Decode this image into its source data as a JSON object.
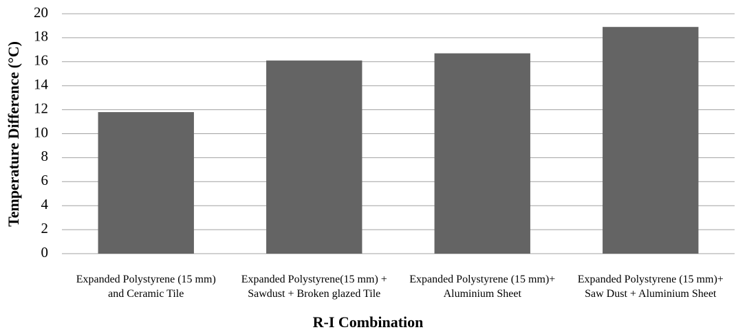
{
  "chart_data": {
    "type": "bar",
    "y_label": "Temperature Difference (°C)",
    "x_label": "R-I Combination",
    "categories": [
      "Expanded Polystyrene (15 mm) and Ceramic Tile",
      "Expanded Polystyrene(15 mm) + Sawdust + Broken glazed Tile",
      "Expanded Polystyrene (15 mm)+ Aluminium Sheet",
      "Expanded Polystyrene (15 mm)+ Saw Dust + Aluminium Sheet"
    ],
    "values": [
      11.8,
      16.1,
      16.7,
      18.9
    ],
    "color": "#646464",
    "ylim": [
      0,
      20
    ],
    "yticks": [
      0,
      2,
      4,
      6,
      8,
      10,
      12,
      14,
      16,
      18,
      20
    ],
    "grid": true
  }
}
